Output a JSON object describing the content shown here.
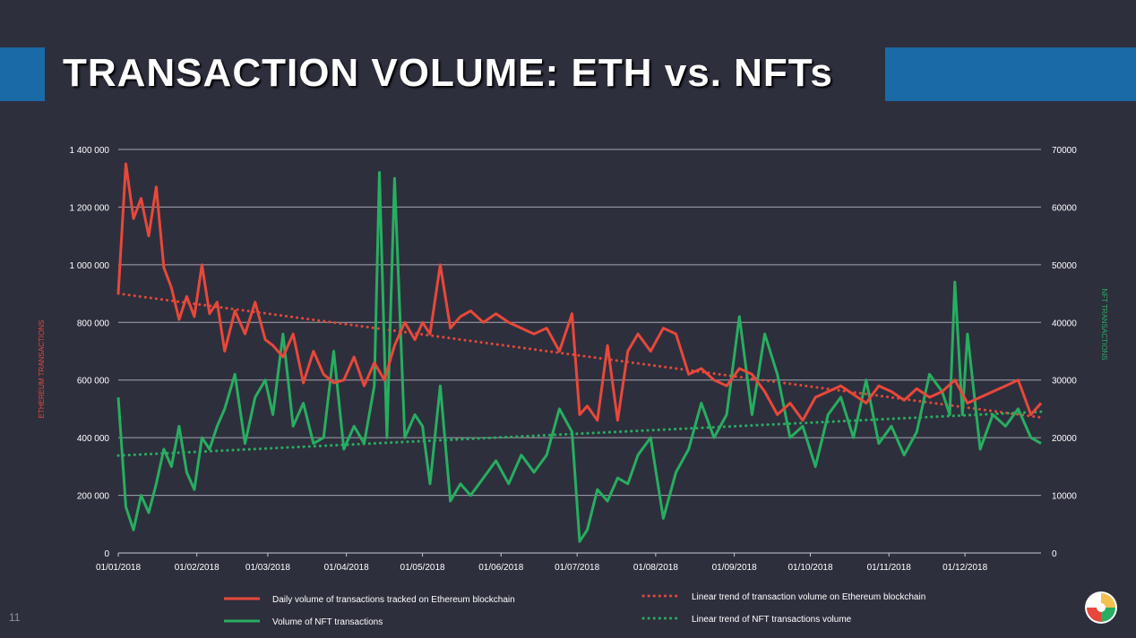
{
  "slide": {
    "title": "TRANSACTION VOLUME: ETH vs. NFTs",
    "page_number": "11",
    "colors": {
      "background": "#2e2f3d",
      "band": "#1a6aa7",
      "eth": "#e8483a",
      "nft": "#27ae60",
      "grid": "#a4a5b0",
      "text": "#ffffff"
    }
  },
  "chart_data": {
    "type": "line",
    "ylabel": "ETHEREUM TRANSACTIONS",
    "y2label": "NFT TRANSACTIONS",
    "x_ticks": [
      "01/01/2018",
      "01/02/2018",
      "01/03/2018",
      "01/04/2018",
      "01/05/2018",
      "01/06/2018",
      "01/07/2018",
      "01/08/2018",
      "01/09/2018",
      "01/10/2018",
      "01/11/2018",
      "01/12/2018"
    ],
    "x_range": [
      "2018-01-01",
      "2018-12-31"
    ],
    "ylim": [
      0,
      1400000
    ],
    "y2lim": [
      0,
      70000
    ],
    "y_ticks": [
      "0",
      "200 000",
      "400 000",
      "600 000",
      "800 000",
      "1 000 000",
      "1 200 000",
      "1 400 000"
    ],
    "y2_ticks": [
      "0",
      "10000",
      "20000",
      "30000",
      "40000",
      "50000",
      "60000",
      "70000"
    ],
    "grid": true,
    "legend_position": "bottom",
    "series": [
      {
        "name": "Daily volume of transactions tracked on Ethereum blockchain",
        "axis": "left",
        "color": "#e8483a",
        "style": "solid",
        "x": [
          "2018-01-01",
          "2018-01-04",
          "2018-01-07",
          "2018-01-10",
          "2018-01-13",
          "2018-01-16",
          "2018-01-19",
          "2018-01-22",
          "2018-01-25",
          "2018-01-28",
          "2018-01-31",
          "2018-02-03",
          "2018-02-06",
          "2018-02-09",
          "2018-02-12",
          "2018-02-16",
          "2018-02-20",
          "2018-02-24",
          "2018-02-28",
          "2018-03-03",
          "2018-03-07",
          "2018-03-11",
          "2018-03-15",
          "2018-03-19",
          "2018-03-23",
          "2018-03-27",
          "2018-03-31",
          "2018-04-04",
          "2018-04-08",
          "2018-04-12",
          "2018-04-16",
          "2018-04-20",
          "2018-04-24",
          "2018-04-28",
          "2018-05-01",
          "2018-05-04",
          "2018-05-08",
          "2018-05-12",
          "2018-05-16",
          "2018-05-20",
          "2018-05-25",
          "2018-05-30",
          "2018-06-04",
          "2018-06-09",
          "2018-06-14",
          "2018-06-19",
          "2018-06-24",
          "2018-06-29",
          "2018-07-02",
          "2018-07-05",
          "2018-07-09",
          "2018-07-13",
          "2018-07-17",
          "2018-07-21",
          "2018-07-25",
          "2018-07-30",
          "2018-08-04",
          "2018-08-09",
          "2018-08-14",
          "2018-08-19",
          "2018-08-24",
          "2018-08-29",
          "2018-09-03",
          "2018-09-08",
          "2018-09-13",
          "2018-09-18",
          "2018-09-23",
          "2018-09-28",
          "2018-10-03",
          "2018-10-08",
          "2018-10-13",
          "2018-10-18",
          "2018-10-23",
          "2018-10-28",
          "2018-11-02",
          "2018-11-07",
          "2018-11-12",
          "2018-11-17",
          "2018-11-22",
          "2018-11-27",
          "2018-12-02",
          "2018-12-07",
          "2018-12-12",
          "2018-12-17",
          "2018-12-22",
          "2018-12-27",
          "2018-12-31"
        ],
        "values": [
          900000,
          1350000,
          1160000,
          1230000,
          1100000,
          1270000,
          990000,
          920000,
          810000,
          890000,
          820000,
          1000000,
          830000,
          870000,
          700000,
          840000,
          760000,
          870000,
          740000,
          720000,
          680000,
          760000,
          590000,
          700000,
          620000,
          590000,
          600000,
          680000,
          580000,
          660000,
          600000,
          720000,
          800000,
          740000,
          800000,
          760000,
          1000000,
          780000,
          820000,
          840000,
          800000,
          830000,
          800000,
          780000,
          760000,
          780000,
          700000,
          830000,
          480000,
          510000,
          460000,
          720000,
          460000,
          700000,
          760000,
          700000,
          780000,
          760000,
          620000,
          640000,
          600000,
          580000,
          640000,
          620000,
          560000,
          480000,
          520000,
          460000,
          540000,
          560000,
          580000,
          550000,
          520000,
          580000,
          560000,
          530000,
          570000,
          540000,
          560000,
          600000,
          520000,
          540000,
          560000,
          580000,
          600000,
          480000,
          520000
        ]
      },
      {
        "name": "Volume of NFT transactions",
        "axis": "right",
        "color": "#27ae60",
        "style": "solid",
        "x": [
          "2018-01-01",
          "2018-01-04",
          "2018-01-07",
          "2018-01-10",
          "2018-01-13",
          "2018-01-16",
          "2018-01-19",
          "2018-01-22",
          "2018-01-25",
          "2018-01-28",
          "2018-01-31",
          "2018-02-03",
          "2018-02-06",
          "2018-02-09",
          "2018-02-12",
          "2018-02-16",
          "2018-02-20",
          "2018-02-24",
          "2018-02-28",
          "2018-03-03",
          "2018-03-07",
          "2018-03-11",
          "2018-03-15",
          "2018-03-19",
          "2018-03-23",
          "2018-03-27",
          "2018-03-31",
          "2018-04-04",
          "2018-04-08",
          "2018-04-12",
          "2018-04-14",
          "2018-04-17",
          "2018-04-20",
          "2018-04-24",
          "2018-04-28",
          "2018-05-01",
          "2018-05-04",
          "2018-05-08",
          "2018-05-12",
          "2018-05-16",
          "2018-05-20",
          "2018-05-25",
          "2018-05-30",
          "2018-06-04",
          "2018-06-09",
          "2018-06-14",
          "2018-06-19",
          "2018-06-24",
          "2018-06-29",
          "2018-07-02",
          "2018-07-05",
          "2018-07-09",
          "2018-07-13",
          "2018-07-17",
          "2018-07-21",
          "2018-07-25",
          "2018-07-30",
          "2018-08-04",
          "2018-08-09",
          "2018-08-14",
          "2018-08-19",
          "2018-08-24",
          "2018-08-29",
          "2018-09-03",
          "2018-09-08",
          "2018-09-13",
          "2018-09-18",
          "2018-09-23",
          "2018-09-28",
          "2018-10-03",
          "2018-10-08",
          "2018-10-13",
          "2018-10-18",
          "2018-10-23",
          "2018-10-28",
          "2018-11-02",
          "2018-11-07",
          "2018-11-12",
          "2018-11-17",
          "2018-11-22",
          "2018-11-25",
          "2018-11-27",
          "2018-11-30",
          "2018-12-02",
          "2018-12-07",
          "2018-12-12",
          "2018-12-17",
          "2018-12-22",
          "2018-12-27",
          "2018-12-31"
        ],
        "values": [
          27000,
          8000,
          4000,
          10000,
          7000,
          12000,
          18000,
          15000,
          22000,
          14000,
          11000,
          20000,
          18000,
          22000,
          25000,
          31000,
          19000,
          27000,
          30000,
          24000,
          38000,
          22000,
          26000,
          19000,
          20000,
          35000,
          18000,
          22000,
          19000,
          29000,
          66000,
          20000,
          65000,
          20000,
          24000,
          22000,
          12000,
          29000,
          9000,
          12000,
          10000,
          13000,
          16000,
          12000,
          17000,
          14000,
          17000,
          25000,
          21000,
          2000,
          4000,
          11000,
          9000,
          13000,
          12000,
          17000,
          20000,
          6000,
          14000,
          18000,
          26000,
          20000,
          24000,
          41000,
          24000,
          38000,
          31000,
          20000,
          22000,
          15000,
          24000,
          27000,
          20000,
          30000,
          19000,
          22000,
          17000,
          21000,
          31000,
          28000,
          24000,
          47000,
          24000,
          38000,
          18000,
          24000,
          22000,
          25000,
          20000,
          19000
        ]
      },
      {
        "name": "Linear trend of transaction volume on Ethereum blockchain",
        "axis": "left",
        "color": "#e8483a",
        "style": "dotted",
        "x": [
          "2018-01-01",
          "2018-12-31"
        ],
        "values": [
          900000,
          470000
        ]
      },
      {
        "name": "Linear trend of NFT transactions volume",
        "axis": "right",
        "color": "#27ae60",
        "style": "dotted",
        "x": [
          "2018-01-01",
          "2018-12-31"
        ],
        "values": [
          16900,
          24500
        ]
      }
    ]
  }
}
